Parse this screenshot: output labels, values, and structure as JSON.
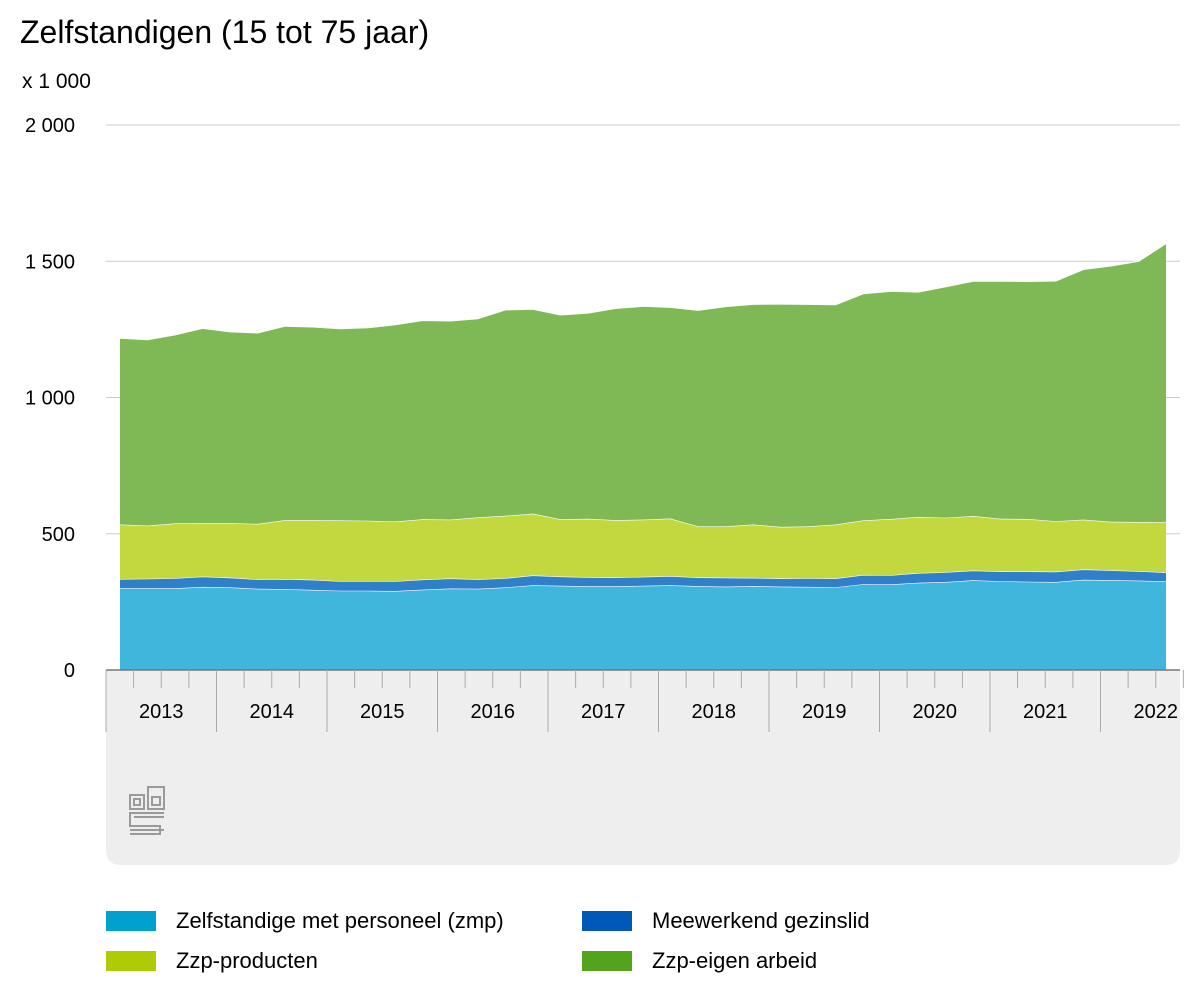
{
  "chart_data": {
    "type": "area",
    "title": "Zelfstandigen (15 tot 75 jaar)",
    "unit_label": "x 1 000",
    "stacked": true,
    "ylim": [
      0,
      2000
    ],
    "yticks": [
      0,
      500,
      1000,
      1500,
      2000
    ],
    "ytick_labels": [
      "0",
      "500",
      "1 000",
      "1 500",
      "2 000"
    ],
    "grid": true,
    "years": [
      "2013",
      "2014",
      "2015",
      "2016",
      "2017",
      "2018",
      "2019",
      "2020",
      "2021",
      "2022"
    ],
    "quarters_per_year": 4,
    "series": [
      {
        "name": "Zelfstandige met personeel (zmp)",
        "color": "#41b6dc",
        "values": [
          300,
          300,
          300,
          305,
          303,
          298,
          297,
          294,
          291,
          291,
          290,
          295,
          299,
          298,
          303,
          311,
          309,
          307,
          307,
          309,
          311,
          308,
          306,
          308,
          306,
          305,
          304,
          315,
          314,
          320,
          323,
          329,
          326,
          324,
          323,
          331,
          330,
          328,
          325
        ]
      },
      {
        "name": "Meewerkend gezinslid",
        "color": "#2f7fca",
        "values": [
          34,
          35,
          37,
          38,
          36,
          35,
          37,
          37,
          35,
          35,
          36,
          37,
          37,
          35,
          34,
          36,
          34,
          34,
          33,
          33,
          34,
          32,
          33,
          30,
          30,
          32,
          32,
          34,
          34,
          36,
          36,
          36,
          36,
          38,
          38,
          38,
          36,
          35,
          33
        ]
      },
      {
        "name": "Zzp-producten",
        "color": "#c3d83f",
        "values": [
          200,
          195,
          201,
          196,
          200,
          203,
          216,
          219,
          223,
          222,
          219,
          221,
          216,
          227,
          229,
          227,
          210,
          214,
          210,
          210,
          211,
          187,
          188,
          196,
          189,
          190,
          198,
          200,
          206,
          206,
          200,
          200,
          193,
          192,
          185,
          183,
          178,
          180,
          184
        ]
      },
      {
        "name": "Zzp-eigen arbeid",
        "color": "#7fb956",
        "values": [
          684,
          682,
          692,
          715,
          702,
          701,
          712,
          709,
          704,
          708,
          722,
          730,
          729,
          729,
          756,
          750,
          750,
          755,
          777,
          783,
          775,
          793,
          807,
          808,
          818,
          815,
          807,
          832,
          836,
          825,
          848,
          862,
          872,
          872,
          882,
          918,
          939,
          957,
          1023
        ]
      }
    ],
    "legend": [
      {
        "label": "Zelfstandige met personeel (zmp)",
        "color": "#00a1cd"
      },
      {
        "label": "Meewerkend gezinslid",
        "color": "#0058b8"
      },
      {
        "label": "Zzp-producten",
        "color": "#afcb05"
      },
      {
        "label": "Zzp-eigen arbeid",
        "color": "#53a31d"
      }
    ],
    "logo": "cbs-logo"
  }
}
